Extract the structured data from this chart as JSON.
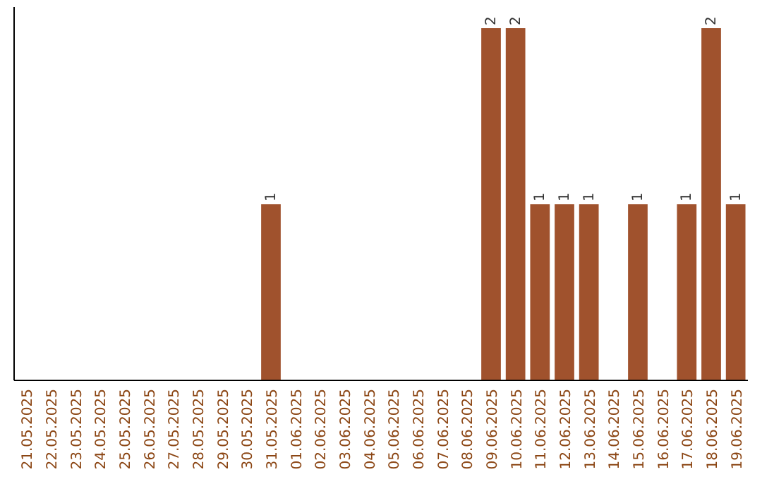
{
  "chart_data": {
    "type": "bar",
    "categories": [
      "21.05.2025",
      "22.05.2025",
      "23.05.2025",
      "24.05.2025",
      "25.05.2025",
      "26.05.2025",
      "27.05.2025",
      "28.05.2025",
      "29.05.2025",
      "30.05.2025",
      "31.05.2025",
      "01.06.2025",
      "02.06.2025",
      "03.06.2025",
      "04.06.2025",
      "05.06.2025",
      "06.06.2025",
      "07.06.2025",
      "08.06.2025",
      "09.06.2025",
      "10.06.2025",
      "11.06.2025",
      "12.06.2025",
      "13.06.2025",
      "14.06.2025",
      "15.06.2025",
      "16.06.2025",
      "17.06.2025",
      "18.06.2025",
      "19.06.2025"
    ],
    "values": [
      0,
      0,
      0,
      0,
      0,
      0,
      0,
      0,
      0,
      0,
      1,
      0,
      0,
      0,
      0,
      0,
      0,
      0,
      0,
      2,
      2,
      1,
      1,
      1,
      0,
      1,
      0,
      1,
      2,
      1
    ],
    "value_labels": [
      null,
      null,
      null,
      null,
      null,
      null,
      null,
      null,
      null,
      null,
      "1",
      null,
      null,
      null,
      null,
      null,
      null,
      null,
      null,
      "2",
      "2",
      "1",
      "1",
      "1",
      null,
      "1",
      null,
      "1",
      "2",
      "1"
    ],
    "color": "#a0522d",
    "tick_labels": "x"
  }
}
